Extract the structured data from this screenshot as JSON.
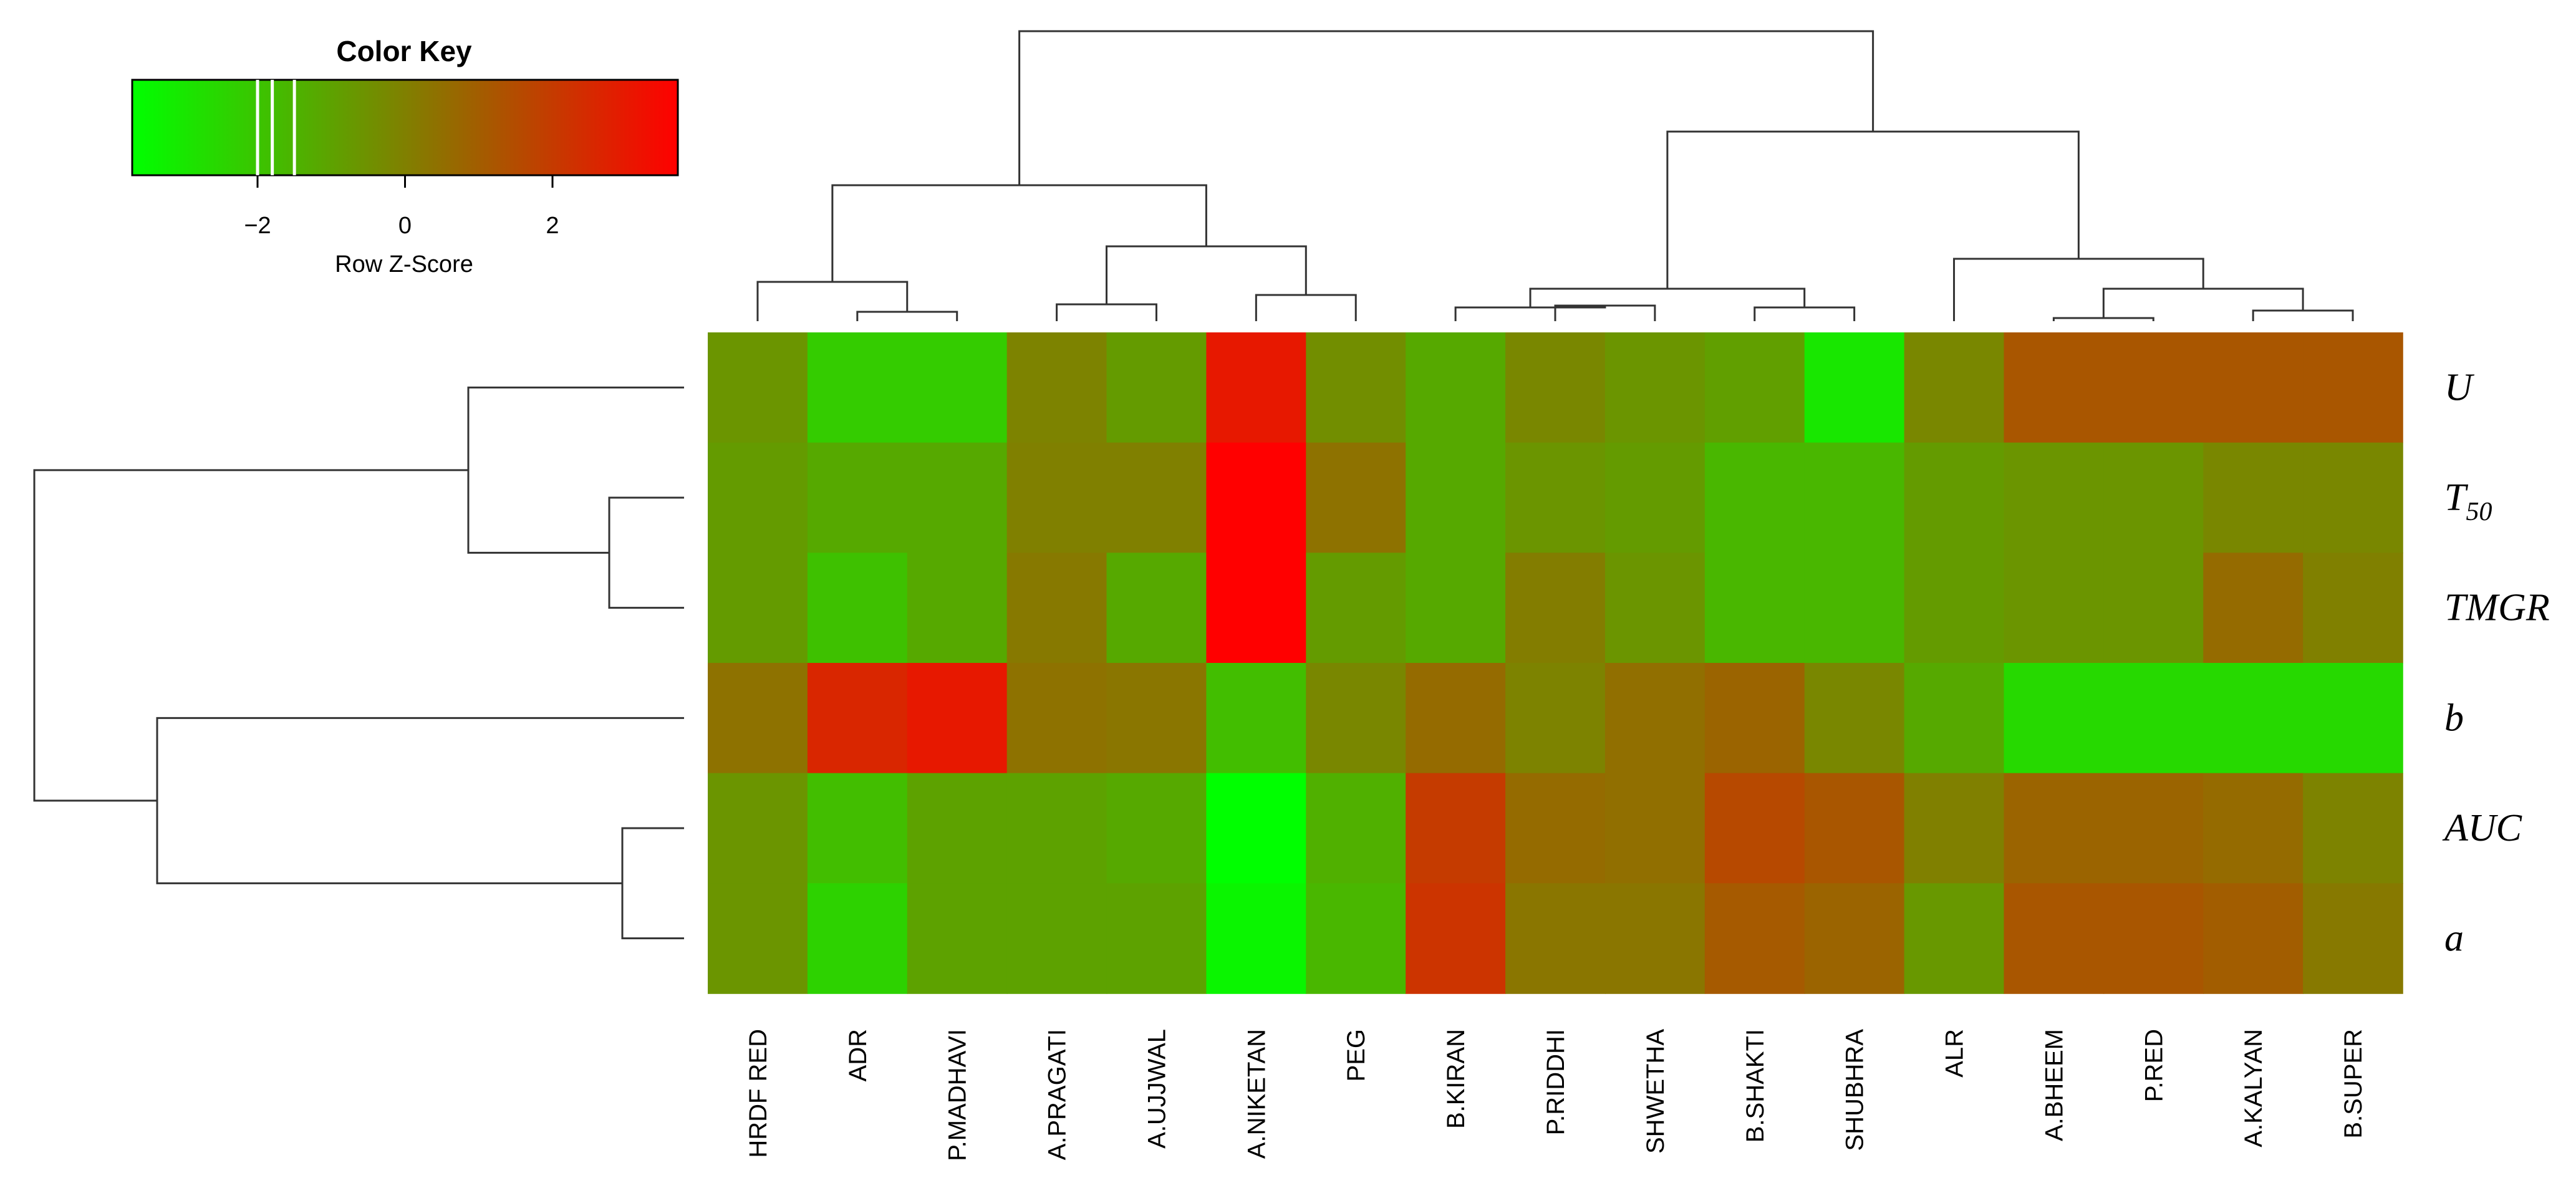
{
  "chart_data": {
    "type": "heatmap",
    "columns": [
      "HRDF RED",
      "ADR",
      "P.MADHAVI",
      "A.PRAGATI",
      "A.UJJWAL",
      "A.NIKETAN",
      "PEG",
      "B.KIRAN",
      "P.RIDDHI",
      "SHWETHA",
      "B.SHAKTI",
      "SHUBHRA",
      "ALR",
      "A.BHEEM",
      "P.RED",
      "A.KALYAN",
      "B.SUPER"
    ],
    "rows": [
      {
        "main": "U",
        "sub": ""
      },
      {
        "main": "T",
        "sub": "50"
      },
      {
        "main": "TMGR",
        "sub": ""
      },
      {
        "main": "b",
        "sub": ""
      },
      {
        "main": "AUC",
        "sub": ""
      },
      {
        "main": "a",
        "sub": ""
      }
    ],
    "values": [
      [
        -0.6,
        -2.2,
        -2.2,
        -0.1,
        -0.8,
        3.0,
        -0.4,
        -1.2,
        -0.2,
        -0.6,
        -0.9,
        -3.0,
        -0.2,
        1.2,
        1.2,
        1.2,
        1.2
      ],
      [
        -0.8,
        -1.2,
        -1.2,
        0.0,
        0.0,
        3.7,
        0.4,
        -1.2,
        -0.6,
        -0.8,
        -1.6,
        -1.6,
        -0.8,
        -0.6,
        -0.6,
        -0.2,
        -0.2
      ],
      [
        -0.8,
        -1.9,
        -1.2,
        0.2,
        -1.2,
        3.7,
        -0.8,
        -1.2,
        0.1,
        -0.6,
        -1.6,
        -1.6,
        -0.8,
        -0.6,
        -0.6,
        0.6,
        0.0
      ],
      [
        0.4,
        2.6,
        3.0,
        0.4,
        0.3,
        -1.8,
        -0.2,
        0.6,
        -0.1,
        0.5,
        0.8,
        -0.2,
        -1.2,
        -2.6,
        -2.6,
        -2.6,
        -2.6
      ],
      [
        -0.6,
        -1.8,
        -1.0,
        -1.0,
        -1.2,
        -3.7,
        -1.4,
        2.0,
        0.6,
        0.5,
        1.6,
        1.2,
        0.0,
        0.8,
        0.8,
        0.6,
        -0.1
      ],
      [
        -0.6,
        -2.4,
        -1.0,
        -1.0,
        -1.0,
        -3.4,
        -1.6,
        2.2,
        0.3,
        0.3,
        1.1,
        0.8,
        -0.7,
        1.2,
        1.2,
        1.0,
        0.2
      ]
    ],
    "color_key": {
      "title": "Color Key",
      "xlabel": "Row Z-Score",
      "ticks": [
        -2,
        0,
        2
      ],
      "range": [
        -3.7,
        3.7
      ],
      "low_color": "#00ff00",
      "mid_color": "#808000",
      "high_color": "#ff0000",
      "histogram_marks": [
        -2.0,
        -1.8,
        -1.5
      ]
    },
    "dendrograms": "present"
  }
}
